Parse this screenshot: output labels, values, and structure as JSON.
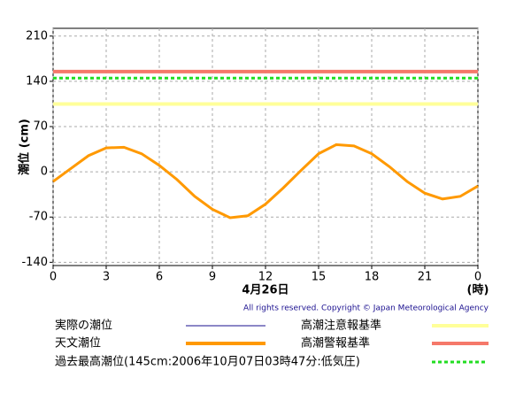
{
  "chart_data": {
    "type": "line",
    "y_label": "潮位 (cm)",
    "x_label": "4月26日",
    "x_unit": "(時)",
    "copyright": "All rights reserved. Copyright © Japan Meteorological Agency",
    "x": [
      0,
      1,
      2,
      3,
      4,
      5,
      6,
      7,
      8,
      9,
      10,
      11,
      12,
      13,
      14,
      15,
      16,
      17,
      18,
      19,
      20,
      21,
      22,
      23,
      24
    ],
    "series": [
      {
        "name": "実際の潮位",
        "color": "#1a0f8f",
        "values": [
          null,
          null,
          null,
          null,
          null,
          null,
          null,
          null,
          null,
          null,
          null,
          null,
          null,
          null,
          null,
          null,
          null,
          null,
          null,
          null,
          null,
          null,
          null,
          null,
          null
        ]
      },
      {
        "name": "天文潮位",
        "color": "#ff9900",
        "values": [
          -15,
          5,
          25,
          37,
          38,
          28,
          10,
          -12,
          -38,
          -58,
          -71,
          -68,
          -50,
          -25,
          2,
          28,
          42,
          40,
          28,
          8,
          -15,
          -33,
          -42,
          -38,
          -22
        ]
      }
    ],
    "reference_lines": [
      {
        "name": "高潮注意報基準",
        "color": "#ffff99",
        "value": 105,
        "style": "solid"
      },
      {
        "name": "高潮警報基準",
        "color": "#f5786a",
        "value": 155,
        "style": "solid"
      },
      {
        "name": "過去最高潮位(145cm:2006年10月07日03時47分:低気圧)",
        "color": "#22dd22",
        "value": 145,
        "style": "dotted"
      }
    ],
    "xlim": [
      0,
      24
    ],
    "xticks": [
      0,
      3,
      6,
      9,
      12,
      15,
      18,
      21,
      {
        "value": 24,
        "label": "0"
      }
    ],
    "ylim": [
      -145,
      222
    ],
    "yticks": [
      -140,
      -70,
      0,
      70,
      140,
      210
    ],
    "grid": true
  }
}
